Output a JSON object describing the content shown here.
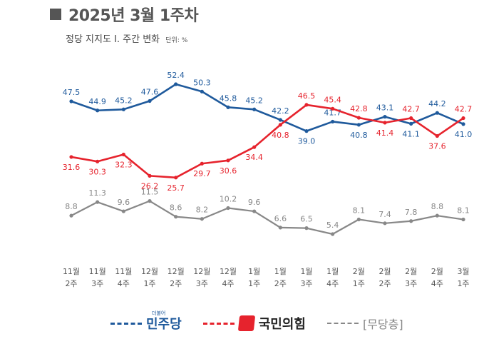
{
  "title": "2025년 3월 1주차",
  "subtitle": "정당 지지도 Ⅰ. 주간 변화",
  "unit": "단위: %",
  "colors": {
    "dem": "#1f5a9c",
    "ppp": "#e6232d",
    "none": "#888888"
  },
  "legend": {
    "dem_label": "민주당",
    "dem_sup": "더불어",
    "ppp_label": "국민의힘",
    "none_label": "[무당층]"
  },
  "chart_data": {
    "type": "line",
    "categories": [
      [
        "11월",
        "2주"
      ],
      [
        "11월",
        "3주"
      ],
      [
        "11월",
        "4주"
      ],
      [
        "12월",
        "1주"
      ],
      [
        "12월",
        "2주"
      ],
      [
        "12월",
        "3주"
      ],
      [
        "12월",
        "4주"
      ],
      [
        "1월",
        "1주"
      ],
      [
        "1월",
        "2주"
      ],
      [
        "1월",
        "3주"
      ],
      [
        "1월",
        "4주"
      ],
      [
        "2월",
        "1주"
      ],
      [
        "2월",
        "2주"
      ],
      [
        "2월",
        "3주"
      ],
      [
        "2월",
        "4주"
      ],
      [
        "3월",
        "1주"
      ]
    ],
    "series": [
      {
        "name": "더불어민주당",
        "key": "dem",
        "values": [
          47.5,
          44.9,
          45.2,
          47.6,
          52.4,
          50.3,
          45.8,
          45.2,
          42.2,
          39.0,
          41.7,
          40.8,
          43.1,
          41.1,
          44.2,
          41.0
        ]
      },
      {
        "name": "국민의힘",
        "key": "ppp",
        "values": [
          31.6,
          30.3,
          32.3,
          26.2,
          25.7,
          29.7,
          30.6,
          34.4,
          40.8,
          46.5,
          45.4,
          42.8,
          41.4,
          42.7,
          37.6,
          42.7
        ]
      },
      {
        "name": "[무당층]",
        "key": "none",
        "values": [
          8.8,
          11.3,
          9.6,
          11.5,
          8.6,
          8.2,
          10.2,
          9.6,
          6.6,
          6.5,
          5.4,
          8.1,
          7.4,
          7.8,
          8.8,
          8.1
        ]
      }
    ]
  }
}
